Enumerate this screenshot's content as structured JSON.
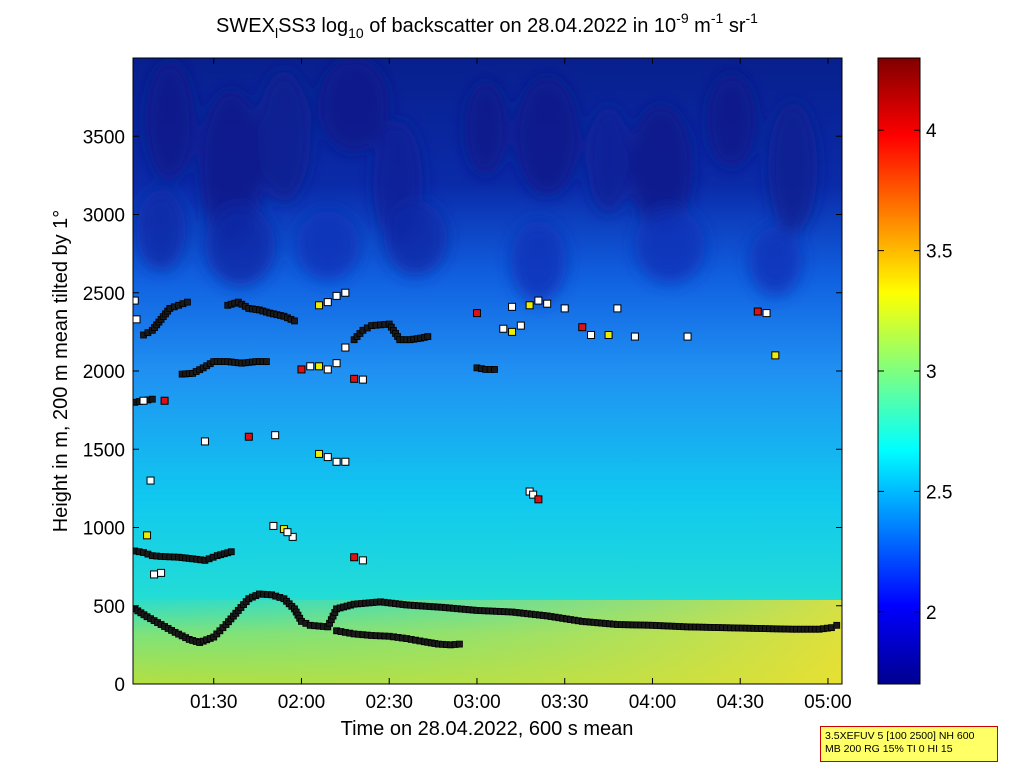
{
  "chart_data": {
    "type": "heatmap",
    "title": {
      "prefix": "SWEX",
      "sub": "l",
      "mid": "SS3 log",
      "sub2": "10",
      "rest": " of backscatter on 28.04.2022 in 10",
      "sup1": "-9",
      "unit1": " m",
      "sup2": "-1",
      "unit2": " sr",
      "sup3": "-1"
    },
    "xlabel": "Time on 28.04.2022, 600 s mean",
    "ylabel": "Height in m, 200 m mean tilted by 1°",
    "x_ticks": [
      "01:30",
      "02:00",
      "02:30",
      "03:00",
      "03:30",
      "04:00",
      "04:30",
      "05:00"
    ],
    "x_tick_hours": [
      1.5,
      2.0,
      2.5,
      3.0,
      3.5,
      4.0,
      4.5,
      5.0
    ],
    "xlim_hours": [
      1.04,
      5.08
    ],
    "ylim": [
      0,
      4000
    ],
    "y_ticks": [
      0,
      500,
      1000,
      1500,
      2000,
      2500,
      3000,
      3500
    ],
    "colorbar": {
      "range": [
        1.7,
        4.3
      ],
      "ticks": [
        2,
        2.5,
        3,
        3.5,
        4
      ],
      "tick_labels": [
        "2",
        "2.5",
        "3",
        "3.5",
        "4"
      ],
      "colormap": "jet"
    },
    "layers": [
      {
        "name": "boundary layer",
        "points": [
          [
            1.05,
            480
          ],
          [
            1.12,
            430
          ],
          [
            1.2,
            380
          ],
          [
            1.28,
            330
          ],
          [
            1.36,
            285
          ],
          [
            1.42,
            265
          ],
          [
            1.5,
            300
          ],
          [
            1.57,
            380
          ],
          [
            1.64,
            470
          ],
          [
            1.7,
            545
          ],
          [
            1.76,
            575
          ],
          [
            1.83,
            570
          ],
          [
            1.9,
            545
          ],
          [
            1.96,
            480
          ],
          [
            2.0,
            400
          ],
          [
            2.05,
            375
          ],
          [
            2.1,
            370
          ],
          [
            2.15,
            365
          ],
          [
            2.2,
            480
          ],
          [
            2.3,
            510
          ],
          [
            2.45,
            525
          ],
          [
            2.6,
            505
          ],
          [
            2.8,
            490
          ],
          [
            3.0,
            470
          ],
          [
            3.2,
            460
          ],
          [
            3.4,
            435
          ],
          [
            3.6,
            400
          ],
          [
            3.8,
            380
          ],
          [
            4.0,
            375
          ],
          [
            4.2,
            365
          ],
          [
            4.4,
            360
          ],
          [
            4.6,
            355
          ],
          [
            4.8,
            350
          ],
          [
            4.95,
            350
          ],
          [
            5.02,
            360
          ],
          [
            5.05,
            375
          ]
        ]
      },
      {
        "name": "residual layer",
        "points": [
          [
            2.2,
            340
          ],
          [
            2.3,
            320
          ],
          [
            2.4,
            310
          ],
          [
            2.5,
            305
          ],
          [
            2.6,
            290
          ],
          [
            2.7,
            270
          ],
          [
            2.78,
            255
          ],
          [
            2.85,
            250
          ],
          [
            2.9,
            255
          ]
        ]
      },
      {
        "name": "low cloud base",
        "points": [
          [
            1.05,
            850
          ],
          [
            1.1,
            840
          ],
          [
            1.15,
            820
          ],
          [
            1.2,
            815
          ],
          [
            1.3,
            810
          ],
          [
            1.38,
            800
          ],
          [
            1.45,
            790
          ],
          [
            1.52,
            820
          ],
          [
            1.6,
            845
          ]
        ]
      },
      {
        "name": "mid layer",
        "points": [
          [
            1.05,
            1800
          ],
          [
            1.1,
            1810
          ],
          [
            1.15,
            1820
          ]
        ]
      },
      {
        "name": "upper layer 1",
        "points": [
          [
            1.32,
            1980
          ],
          [
            1.38,
            1985
          ],
          [
            1.44,
            2020
          ],
          [
            1.5,
            2060
          ],
          [
            1.58,
            2060
          ],
          [
            1.66,
            2050
          ],
          [
            1.74,
            2060
          ],
          [
            1.8,
            2060
          ]
        ]
      },
      {
        "name": "upper layer 2",
        "points": [
          [
            1.1,
            2230
          ],
          [
            1.15,
            2260
          ],
          [
            1.2,
            2330
          ],
          [
            1.25,
            2400
          ],
          [
            1.3,
            2420
          ],
          [
            1.35,
            2440
          ]
        ]
      },
      {
        "name": "upper layer 3",
        "points": [
          [
            1.58,
            2420
          ],
          [
            1.64,
            2440
          ],
          [
            1.7,
            2400
          ],
          [
            1.76,
            2390
          ],
          [
            1.82,
            2370
          ],
          [
            1.9,
            2350
          ],
          [
            1.96,
            2320
          ]
        ]
      },
      {
        "name": "upper layer 4",
        "points": [
          [
            2.3,
            2200
          ],
          [
            2.35,
            2260
          ],
          [
            2.4,
            2290
          ],
          [
            2.5,
            2300
          ],
          [
            2.56,
            2200
          ],
          [
            2.62,
            2200
          ],
          [
            2.68,
            2210
          ],
          [
            2.72,
            2220
          ]
        ]
      },
      {
        "name": "upper layer 5",
        "points": [
          [
            3.0,
            2020
          ],
          [
            3.05,
            2010
          ],
          [
            3.1,
            2010
          ]
        ]
      }
    ],
    "scatter_points": [
      [
        1.05,
        2450
      ],
      [
        1.06,
        2330
      ],
      [
        1.1,
        1810
      ],
      [
        1.22,
        1810
      ],
      [
        1.14,
        1300
      ],
      [
        1.12,
        950
      ],
      [
        1.16,
        700
      ],
      [
        1.2,
        710
      ],
      [
        1.45,
        1550
      ],
      [
        1.7,
        1580
      ],
      [
        1.84,
        1010
      ],
      [
        1.9,
        990
      ],
      [
        1.95,
        940
      ],
      [
        1.92,
        970
      ],
      [
        1.85,
        1590
      ],
      [
        2.0,
        2010
      ],
      [
        2.05,
        2030
      ],
      [
        2.1,
        2030
      ],
      [
        2.15,
        2010
      ],
      [
        2.2,
        2050
      ],
      [
        2.25,
        2150
      ],
      [
        2.3,
        1950
      ],
      [
        2.35,
        1945
      ],
      [
        2.1,
        1470
      ],
      [
        2.15,
        1450
      ],
      [
        2.2,
        1420
      ],
      [
        2.25,
        1420
      ],
      [
        2.3,
        810
      ],
      [
        2.35,
        790
      ],
      [
        2.1,
        2420
      ],
      [
        2.15,
        2440
      ],
      [
        2.2,
        2480
      ],
      [
        2.25,
        2500
      ],
      [
        3.0,
        2370
      ],
      [
        3.15,
        2270
      ],
      [
        3.2,
        2250
      ],
      [
        3.25,
        2290
      ],
      [
        3.3,
        1230
      ],
      [
        3.32,
        1210
      ],
      [
        3.35,
        1180
      ],
      [
        3.2,
        2410
      ],
      [
        3.3,
        2420
      ],
      [
        3.35,
        2450
      ],
      [
        3.4,
        2430
      ],
      [
        3.5,
        2400
      ],
      [
        3.6,
        2280
      ],
      [
        3.65,
        2230
      ],
      [
        3.75,
        2230
      ],
      [
        3.8,
        2400
      ],
      [
        3.9,
        2220
      ],
      [
        4.2,
        2220
      ],
      [
        4.6,
        2380
      ],
      [
        4.65,
        2370
      ],
      [
        4.7,
        2100
      ]
    ]
  },
  "info_box": {
    "line1": "3.5XEFUV 5 [100 2500] NH 600",
    "line2": "MB 200 RG 15% TI 0 HI 15"
  }
}
